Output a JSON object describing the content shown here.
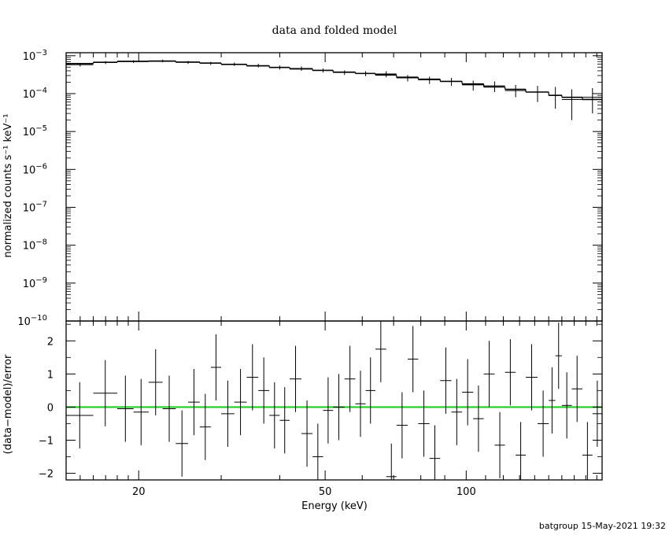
{
  "chart_data": {
    "type": "scatter",
    "title": "data and folded model",
    "footer": "batgroup 15-May-2021 19:32",
    "xlabel": "Energy (keV)",
    "x_scale": "log",
    "xlim": [
      14,
      195
    ],
    "x_ticks": [
      {
        "value": 20,
        "label": "20"
      },
      {
        "value": 50,
        "label": "50"
      },
      {
        "value": 100,
        "label": "100"
      }
    ],
    "top_panel": {
      "ylabel": "normalized counts s⁻¹ keV⁻¹",
      "y_scale": "log",
      "ylim": [
        1e-10,
        0.0012
      ],
      "y_ticks": [
        {
          "value": 0.001,
          "base": "10",
          "exp": "−3"
        },
        {
          "value": 0.0001,
          "base": "10",
          "exp": "−4"
        },
        {
          "value": 1e-05,
          "base": "10",
          "exp": "−5"
        },
        {
          "value": 1e-06,
          "base": "10",
          "exp": "−6"
        },
        {
          "value": 1e-07,
          "base": "10",
          "exp": "−7"
        },
        {
          "value": 1e-08,
          "base": "10",
          "exp": "−8"
        },
        {
          "value": 1e-09,
          "base": "10",
          "exp": "−9"
        },
        {
          "value": 1e-10,
          "base": "10",
          "exp": "−10"
        }
      ],
      "model": {
        "name": "folded model",
        "bins": [
          [
            14,
            16,
            0.00062
          ],
          [
            16,
            18,
            0.00067
          ],
          [
            18,
            21,
            0.00071
          ],
          [
            21,
            24,
            0.00072
          ],
          [
            24,
            27,
            0.00068
          ],
          [
            27,
            30,
            0.00064
          ],
          [
            30,
            34,
            0.00059
          ],
          [
            34,
            38,
            0.00054
          ],
          [
            38,
            42,
            0.00049
          ],
          [
            42,
            47,
            0.00045
          ],
          [
            47,
            52,
            0.00041
          ],
          [
            52,
            58,
            0.00037
          ],
          [
            58,
            64,
            0.00034
          ],
          [
            64,
            71,
            0.00031
          ],
          [
            71,
            79,
            0.00027
          ],
          [
            79,
            88,
            0.00024
          ],
          [
            88,
            98,
            0.00021
          ],
          [
            98,
            109,
            0.00018
          ],
          [
            109,
            121,
            0.00015
          ],
          [
            121,
            134,
            0.00013
          ],
          [
            134,
            150,
            0.00011
          ],
          [
            150,
            160,
            9e-05
          ],
          [
            160,
            177,
            8e-05
          ],
          [
            177,
            195,
            7e-05
          ]
        ]
      },
      "data": [
        {
          "x": 15,
          "xerr": [
            14,
            16
          ],
          "y": 0.00058,
          "yerr": [
            0.00052,
            0.00064
          ]
        },
        {
          "x": 17,
          "xerr": [
            16,
            18
          ],
          "y": 0.00066,
          "yerr": [
            0.0006,
            0.00072
          ]
        },
        {
          "x": 19.5,
          "xerr": [
            18,
            21
          ],
          "y": 0.0007,
          "yerr": [
            0.00064,
            0.00076
          ]
        },
        {
          "x": 22.5,
          "xerr": [
            21,
            24
          ],
          "y": 0.00073,
          "yerr": [
            0.00067,
            0.00079
          ]
        },
        {
          "x": 25.5,
          "xerr": [
            24,
            27
          ],
          "y": 0.00067,
          "yerr": [
            0.00061,
            0.00073
          ]
        },
        {
          "x": 28.5,
          "xerr": [
            27,
            30
          ],
          "y": 0.00063,
          "yerr": [
            0.00057,
            0.00069
          ]
        },
        {
          "x": 32,
          "xerr": [
            30,
            34
          ],
          "y": 0.0006,
          "yerr": [
            0.00054,
            0.00066
          ]
        },
        {
          "x": 36,
          "xerr": [
            34,
            38
          ],
          "y": 0.00055,
          "yerr": [
            0.00049,
            0.00061
          ]
        },
        {
          "x": 40,
          "xerr": [
            38,
            42
          ],
          "y": 0.00049,
          "yerr": [
            0.00043,
            0.00055
          ]
        },
        {
          "x": 44.5,
          "xerr": [
            42,
            47
          ],
          "y": 0.00046,
          "yerr": [
            0.0004,
            0.00052
          ]
        },
        {
          "x": 49.5,
          "xerr": [
            47,
            52
          ],
          "y": 0.00041,
          "yerr": [
            0.00036,
            0.00046
          ]
        },
        {
          "x": 55,
          "xerr": [
            52,
            58
          ],
          "y": 0.00036,
          "yerr": [
            0.00031,
            0.00041
          ]
        },
        {
          "x": 61,
          "xerr": [
            58,
            64
          ],
          "y": 0.00034,
          "yerr": [
            0.00029,
            0.00039
          ]
        },
        {
          "x": 67.5,
          "xerr": [
            64,
            71
          ],
          "y": 0.00033,
          "yerr": [
            0.00027,
            0.00039
          ]
        },
        {
          "x": 75,
          "xerr": [
            71,
            79
          ],
          "y": 0.00026,
          "yerr": [
            0.00021,
            0.00031
          ]
        },
        {
          "x": 83.5,
          "xerr": [
            79,
            88
          ],
          "y": 0.00023,
          "yerr": [
            0.00018,
            0.00028
          ]
        },
        {
          "x": 93,
          "xerr": [
            88,
            98
          ],
          "y": 0.00021,
          "yerr": [
            0.00016,
            0.00026
          ]
        },
        {
          "x": 103.5,
          "xerr": [
            98,
            109
          ],
          "y": 0.00017,
          "yerr": [
            0.00012,
            0.00022
          ]
        },
        {
          "x": 115,
          "xerr": [
            109,
            121
          ],
          "y": 0.00016,
          "yerr": [
            0.00011,
            0.00021
          ]
        },
        {
          "x": 127.5,
          "xerr": [
            121,
            134
          ],
          "y": 0.00012,
          "yerr": [
            8e-05,
            0.00017
          ]
        },
        {
          "x": 142,
          "xerr": [
            134,
            150
          ],
          "y": 0.00011,
          "yerr": [
            6e-05,
            0.00016
          ]
        },
        {
          "x": 155,
          "xerr": [
            150,
            160
          ],
          "y": 9e-05,
          "yerr": [
            4e-05,
            0.00015
          ]
        },
        {
          "x": 168,
          "xerr": [
            160,
            177
          ],
          "y": 7e-05,
          "yerr": [
            2e-05,
            0.00013
          ]
        },
        {
          "x": 186,
          "xerr": [
            177,
            195
          ],
          "y": 8e-05,
          "yerr": [
            3e-05,
            0.00014
          ]
        }
      ]
    },
    "bottom_panel": {
      "ylabel": "(data−model)/error",
      "ylim": [
        -2.2,
        2.6
      ],
      "y_ticks": [
        {
          "value": 2,
          "label": "2"
        },
        {
          "value": 1,
          "label": "1"
        },
        {
          "value": 0,
          "label": "0"
        },
        {
          "value": -1,
          "label": "−1"
        },
        {
          "value": -2,
          "label": "−2"
        }
      ],
      "zero_line_color": "#22cc22",
      "residuals": [
        {
          "xlo": 14,
          "xhi": 16,
          "y": -0.25,
          "err": 1
        },
        {
          "xlo": 16,
          "xhi": 18,
          "y": 0.42,
          "err": 1
        },
        {
          "xlo": 18,
          "xhi": 19.5,
          "y": -0.05,
          "err": 1
        },
        {
          "xlo": 19.5,
          "xhi": 21,
          "y": -0.15,
          "err": 1
        },
        {
          "xlo": 21,
          "xhi": 22.5,
          "y": 0.75,
          "err": 1
        },
        {
          "xlo": 22.5,
          "xhi": 24,
          "y": -0.05,
          "err": 1
        },
        {
          "xlo": 24,
          "xhi": 25.5,
          "y": -1.1,
          "err": 1
        },
        {
          "xlo": 25.5,
          "xhi": 27,
          "y": 0.15,
          "err": 1
        },
        {
          "xlo": 27,
          "xhi": 28.5,
          "y": -0.6,
          "err": 1
        },
        {
          "xlo": 28.5,
          "xhi": 30,
          "y": 1.2,
          "err": 1
        },
        {
          "xlo": 30,
          "xhi": 32,
          "y": -0.2,
          "err": 1
        },
        {
          "xlo": 32,
          "xhi": 34,
          "y": 0.15,
          "err": 1
        },
        {
          "xlo": 34,
          "xhi": 36,
          "y": 0.9,
          "err": 1
        },
        {
          "xlo": 36,
          "xhi": 38,
          "y": 0.5,
          "err": 1
        },
        {
          "xlo": 38,
          "xhi": 40,
          "y": -0.25,
          "err": 1
        },
        {
          "xlo": 40,
          "xhi": 42,
          "y": -0.4,
          "err": 1
        },
        {
          "xlo": 42,
          "xhi": 44.5,
          "y": 0.85,
          "err": 1
        },
        {
          "xlo": 44.5,
          "xhi": 47,
          "y": -0.8,
          "err": 1
        },
        {
          "xlo": 47,
          "xhi": 49.5,
          "y": -1.5,
          "err": 1
        },
        {
          "xlo": 49.5,
          "xhi": 52,
          "y": -0.1,
          "err": 1
        },
        {
          "xlo": 52,
          "xhi": 55,
          "y": 0.0,
          "err": 1
        },
        {
          "xlo": 55,
          "xhi": 58,
          "y": 0.85,
          "err": 1
        },
        {
          "xlo": 58,
          "xhi": 61,
          "y": 0.1,
          "err": 1
        },
        {
          "xlo": 61,
          "xhi": 64,
          "y": 0.5,
          "err": 1
        },
        {
          "xlo": 64,
          "xhi": 67.5,
          "y": 1.75,
          "err": 1
        },
        {
          "xlo": 67.5,
          "xhi": 71,
          "y": -2.1,
          "err": 1
        },
        {
          "xlo": 71,
          "xhi": 75,
          "y": -0.55,
          "err": 1
        },
        {
          "xlo": 75,
          "xhi": 79,
          "y": 1.45,
          "err": 1
        },
        {
          "xlo": 79,
          "xhi": 83.5,
          "y": -0.5,
          "err": 1
        },
        {
          "xlo": 83.5,
          "xhi": 88,
          "y": -1.55,
          "err": 1
        },
        {
          "xlo": 88,
          "xhi": 93,
          "y": 0.8,
          "err": 1
        },
        {
          "xlo": 93,
          "xhi": 98,
          "y": -0.15,
          "err": 1
        },
        {
          "xlo": 98,
          "xhi": 103.5,
          "y": 0.45,
          "err": 1
        },
        {
          "xlo": 103.5,
          "xhi": 109,
          "y": -0.35,
          "err": 1
        },
        {
          "xlo": 109,
          "xhi": 115,
          "y": 1.0,
          "err": 1
        },
        {
          "xlo": 115,
          "xhi": 121,
          "y": -1.15,
          "err": 1
        },
        {
          "xlo": 121,
          "xhi": 127.5,
          "y": 1.05,
          "err": 1
        },
        {
          "xlo": 127.5,
          "xhi": 134,
          "y": -1.45,
          "err": 1
        },
        {
          "xlo": 134,
          "xhi": 142,
          "y": 0.9,
          "err": 1
        },
        {
          "xlo": 142,
          "xhi": 150,
          "y": -0.5,
          "err": 1
        },
        {
          "xlo": 150,
          "xhi": 155,
          "y": 0.2,
          "err": 1
        },
        {
          "xlo": 155,
          "xhi": 160,
          "y": 1.55,
          "err": 1
        },
        {
          "xlo": 160,
          "xhi": 168,
          "y": 0.05,
          "err": 1
        },
        {
          "xlo": 168,
          "xhi": 177,
          "y": 0.55,
          "err": 1
        },
        {
          "xlo": 177,
          "xhi": 186,
          "y": -1.45,
          "err": 1
        },
        {
          "xlo": 186,
          "xhi": 195,
          "y": -0.2,
          "err": 1
        }
      ]
    }
  }
}
